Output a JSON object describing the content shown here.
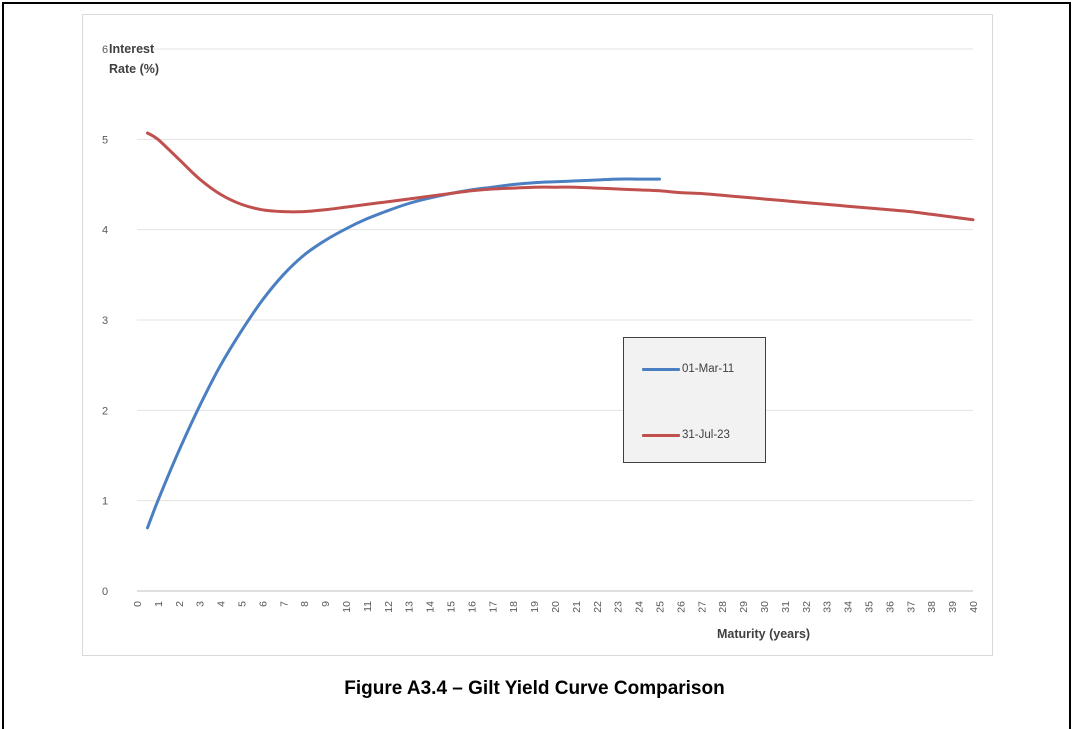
{
  "caption": "Figure A3.4 – Gilt Yield Curve Comparison",
  "chart_data": {
    "type": "line",
    "title": "",
    "ylabel": "Interest Rate (%)",
    "xlabel": "Maturity (years)",
    "ylim": [
      0,
      6
    ],
    "yticks": [
      "0",
      "1",
      "2",
      "3",
      "4",
      "5",
      "6"
    ],
    "categories": [
      "0",
      "1",
      "2",
      "3",
      "4",
      "5",
      "6",
      "7",
      "8",
      "9",
      "10",
      "11",
      "12",
      "13",
      "14",
      "15",
      "16",
      "17",
      "18",
      "19",
      "20",
      "21",
      "22",
      "23",
      "24",
      "25",
      "26",
      "27",
      "28",
      "29",
      "30",
      "31",
      "32",
      "33",
      "34",
      "35",
      "36",
      "37",
      "38",
      "39",
      "40"
    ],
    "grid": true,
    "legend_position": "center-right",
    "series": [
      {
        "name": "01-Mar-11",
        "color": "#4a7fc1",
        "x": [
          0.5,
          1,
          2,
          3,
          4,
          5,
          6,
          7,
          8,
          9,
          10,
          11,
          12,
          13,
          14,
          15,
          16,
          17,
          18,
          19,
          20,
          21,
          22,
          23,
          24,
          25
        ],
        "values": [
          0.7,
          1.0,
          1.55,
          2.05,
          2.5,
          2.88,
          3.22,
          3.5,
          3.72,
          3.88,
          4.01,
          4.12,
          4.21,
          4.29,
          4.35,
          4.4,
          4.44,
          4.47,
          4.5,
          4.52,
          4.53,
          4.54,
          4.55,
          4.56,
          4.56,
          4.56
        ]
      },
      {
        "name": "31-Jul-23",
        "color": "#c0504d",
        "x": [
          0.5,
          1,
          2,
          3,
          4,
          5,
          6,
          7,
          8,
          9,
          10,
          11,
          12,
          13,
          14,
          15,
          16,
          17,
          18,
          19,
          20,
          21,
          22,
          23,
          24,
          25,
          26,
          27,
          28,
          29,
          30,
          31,
          32,
          33,
          34,
          35,
          36,
          37,
          38,
          39,
          40
        ],
        "values": [
          5.07,
          5.0,
          4.78,
          4.56,
          4.39,
          4.28,
          4.22,
          4.2,
          4.2,
          4.22,
          4.25,
          4.28,
          4.31,
          4.34,
          4.37,
          4.4,
          4.43,
          4.45,
          4.46,
          4.47,
          4.47,
          4.47,
          4.46,
          4.45,
          4.44,
          4.43,
          4.41,
          4.4,
          4.38,
          4.36,
          4.34,
          4.32,
          4.3,
          4.28,
          4.26,
          4.24,
          4.22,
          4.2,
          4.17,
          4.14,
          4.11
        ]
      }
    ]
  }
}
